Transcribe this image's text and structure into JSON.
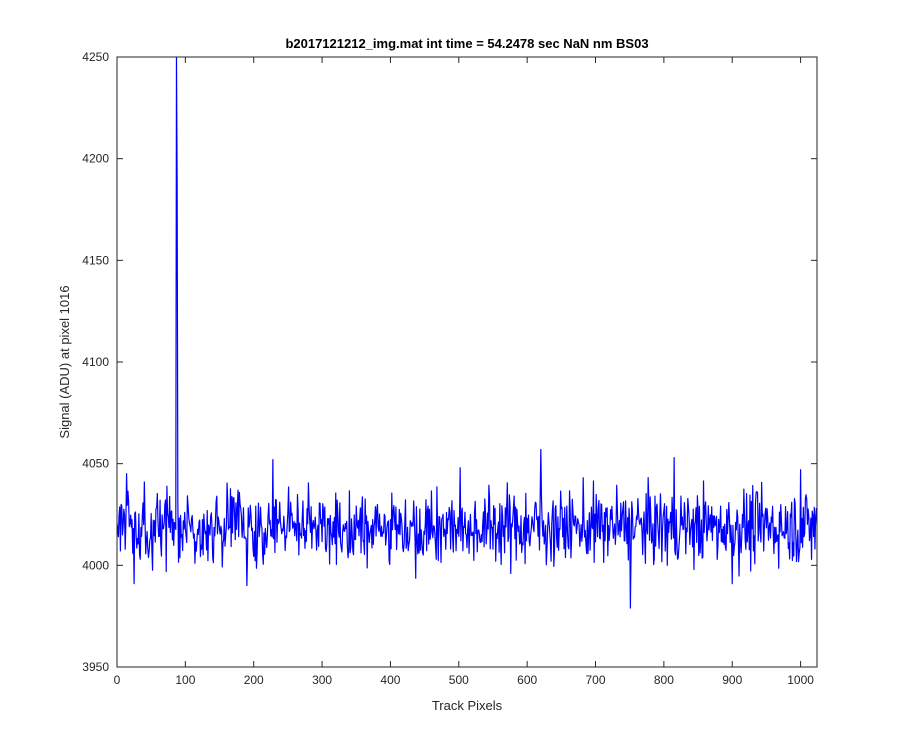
{
  "chart_data": {
    "type": "line",
    "title": "b2017121212_img.mat int time = 54.2478 sec  NaN nm BS03",
    "xlabel": "Track Pixels",
    "ylabel": "Signal (ADU) at pixel 1016",
    "xlim": [
      0,
      1024
    ],
    "ylim": [
      3950,
      4250
    ],
    "xticks": [
      0,
      100,
      200,
      300,
      400,
      500,
      600,
      700,
      800,
      900,
      1000
    ],
    "yticks": [
      3950,
      4000,
      4050,
      4100,
      4150,
      4200,
      4250
    ],
    "grid": false,
    "legend": "none",
    "series_color": "#0000ff",
    "baseline_mean": 4019,
    "noise_spread": 9,
    "features": [
      {
        "x": 25,
        "y": 3991
      },
      {
        "x": 87,
        "y": 4250
      },
      {
        "x": 88,
        "y": 4186
      },
      {
        "x": 190,
        "y": 3990
      },
      {
        "x": 228,
        "y": 4052
      },
      {
        "x": 620,
        "y": 4057
      },
      {
        "x": 751,
        "y": 3979
      },
      {
        "x": 815,
        "y": 4053
      },
      {
        "x": 900,
        "y": 3991
      },
      {
        "x": 1000,
        "y": 4047
      }
    ]
  }
}
